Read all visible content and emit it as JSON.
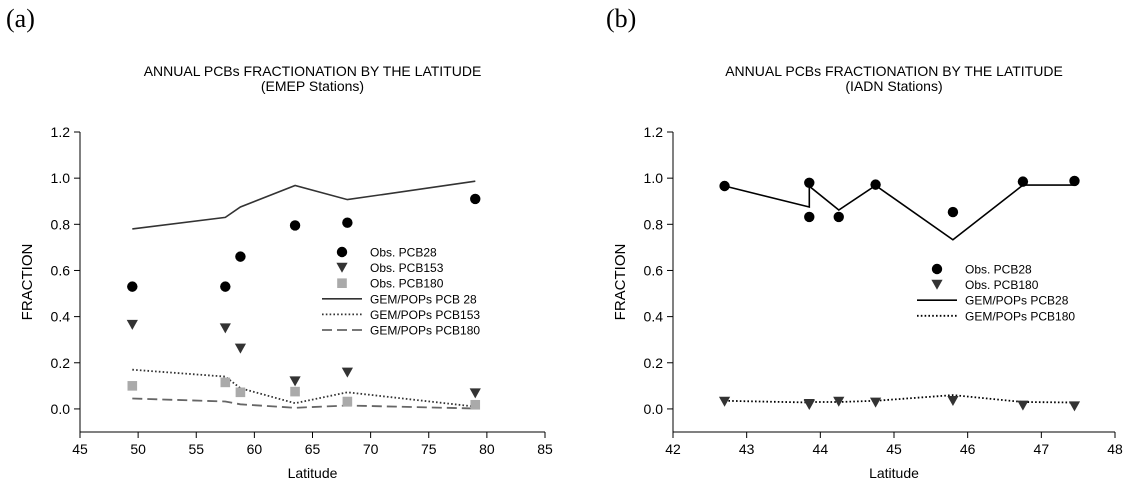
{
  "panels": {
    "a_label": "(a)",
    "b_label": "(b)"
  },
  "colors": {
    "pcb28": "#000000",
    "pcb153": "#333333",
    "pcb180_marker": "#aaaaaa",
    "model_line_dark": "#333333",
    "model_line_gray": "#666666"
  },
  "chart_data": [
    {
      "type": "scatter",
      "title": "ANNUAL PCBs FRACTIONATION BY THE LATITUDE",
      "subtitle": "(EMEP Stations)",
      "xlabel": "Latitude",
      "ylabel": "FRACTION",
      "xlim": [
        45,
        85
      ],
      "ylim": [
        -0.1,
        1.2
      ],
      "xticks": [
        "45",
        "50",
        "55",
        "60",
        "65",
        "70",
        "75",
        "80",
        "85"
      ],
      "yticks": [
        "0.0",
        "0.2",
        "0.4",
        "0.6",
        "0.8",
        "1.0",
        "1.2"
      ],
      "grid": false,
      "legend_position": "center-right",
      "series": [
        {
          "name": "Obs. PCB28",
          "kind": "marker",
          "marker": "circle",
          "color": "#000000",
          "x": [
            49.5,
            57.5,
            58.8,
            63.5,
            68.0,
            79.0
          ],
          "y": [
            0.53,
            0.53,
            0.66,
            0.795,
            0.807,
            0.91
          ]
        },
        {
          "name": "Obs. PCB153",
          "kind": "marker",
          "marker": "triangle-down",
          "color": "#333333",
          "x": [
            49.5,
            57.5,
            58.8,
            63.5,
            68.0,
            79.0
          ],
          "y": [
            0.365,
            0.35,
            0.262,
            0.12,
            0.158,
            0.068
          ]
        },
        {
          "name": "Obs. PCB180",
          "kind": "marker",
          "marker": "square",
          "color": "#aaaaaa",
          "x": [
            49.5,
            57.5,
            58.8,
            63.5,
            68.0,
            79.0
          ],
          "y": [
            0.1,
            0.115,
            0.072,
            0.075,
            0.032,
            0.018
          ]
        },
        {
          "name": "GEM/POPs PCB 28",
          "kind": "line",
          "dash": "solid",
          "color": "#333333",
          "x": [
            49.5,
            57.5,
            58.8,
            63.5,
            68.0,
            79.0
          ],
          "y": [
            0.78,
            0.83,
            0.875,
            0.968,
            0.907,
            0.987
          ]
        },
        {
          "name": "GEM/POPs PCB153",
          "kind": "line",
          "dash": "dotted",
          "color": "#333333",
          "x": [
            49.5,
            57.5,
            58.8,
            63.5,
            68.0,
            79.0
          ],
          "y": [
            0.17,
            0.14,
            0.09,
            0.025,
            0.072,
            0.01
          ]
        },
        {
          "name": "GEM/POPs PCB180",
          "kind": "line",
          "dash": "dashed",
          "color": "#666666",
          "x": [
            49.5,
            57.5,
            58.8,
            63.5,
            68.0,
            79.0
          ],
          "y": [
            0.045,
            0.032,
            0.02,
            0.005,
            0.015,
            0.002
          ]
        }
      ]
    },
    {
      "type": "scatter",
      "title": "ANNUAL PCBs FRACTIONATION BY THE LATITUDE",
      "subtitle": "(IADN Stations)",
      "xlabel": "Latitude",
      "ylabel": "FRACTION",
      "xlim": [
        42,
        48
      ],
      "ylim": [
        -0.1,
        1.2
      ],
      "xticks": [
        "42",
        "43",
        "44",
        "45",
        "46",
        "47",
        "48"
      ],
      "yticks": [
        "0.0",
        "0.2",
        "0.4",
        "0.6",
        "0.8",
        "1.0",
        "1.2"
      ],
      "grid": false,
      "legend_position": "center-right",
      "series": [
        {
          "name": "Obs. PCB28",
          "kind": "marker",
          "marker": "circle",
          "color": "#000000",
          "x": [
            42.7,
            43.85,
            43.85,
            44.25,
            44.75,
            45.8,
            46.75,
            47.45
          ],
          "y": [
            0.966,
            0.98,
            0.832,
            0.832,
            0.972,
            0.853,
            0.985,
            0.988
          ]
        },
        {
          "name": "Obs. PCB180",
          "kind": "marker",
          "marker": "triangle-down",
          "color": "#333333",
          "x": [
            42.7,
            43.85,
            43.85,
            44.25,
            44.75,
            45.8,
            46.75,
            47.45
          ],
          "y": [
            0.032,
            0.022,
            0.018,
            0.032,
            0.028,
            0.035,
            0.015,
            0.012
          ]
        },
        {
          "name": "GEM/POPs PCB28",
          "kind": "line",
          "dash": "solid",
          "color": "#000000",
          "x": [
            42.7,
            43.85,
            43.85,
            44.25,
            44.75,
            45.8,
            46.75,
            47.45
          ],
          "y": [
            0.966,
            0.875,
            0.965,
            0.862,
            0.968,
            0.733,
            0.97,
            0.97
          ]
        },
        {
          "name": "GEM/POPs PCB180",
          "kind": "line",
          "dash": "dotted",
          "color": "#000000",
          "x": [
            42.7,
            43.85,
            43.85,
            44.25,
            44.75,
            45.8,
            46.75,
            47.45
          ],
          "y": [
            0.035,
            0.028,
            0.03,
            0.03,
            0.035,
            0.06,
            0.03,
            0.028
          ]
        }
      ]
    }
  ]
}
